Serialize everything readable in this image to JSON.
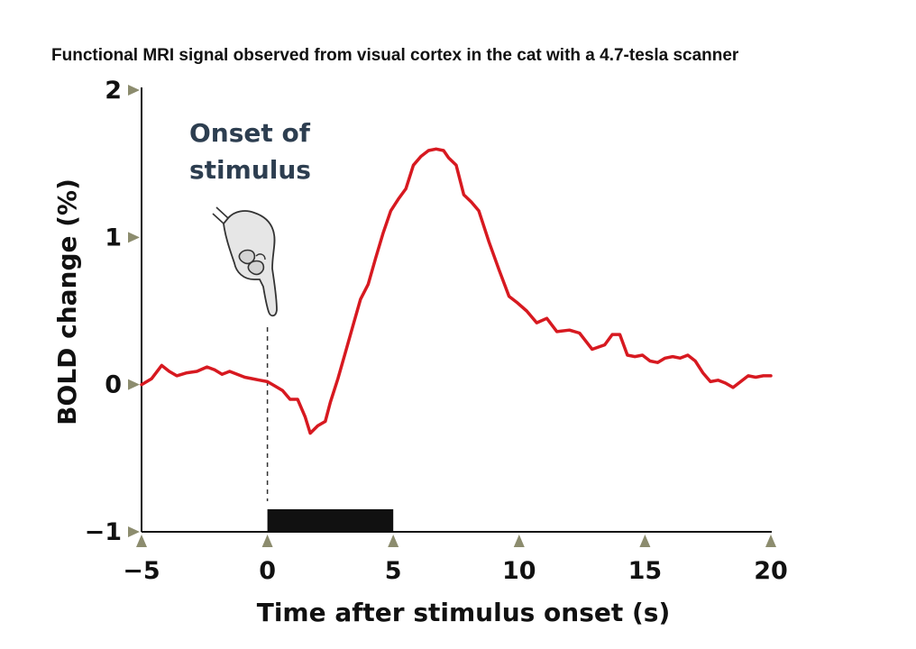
{
  "colors": {
    "series": "#d71920",
    "axis": "#111111",
    "tick_marker": "#8c8c6e",
    "annotation_text": "#2d3e50",
    "stimulus_bar": "#111111"
  },
  "chart_data": {
    "type": "line",
    "title": "Functional MRI signal observed from visual cortex in the cat with a 4.7-tesla scanner",
    "xlabel": "Time after stimulus onset (s)",
    "ylabel": "BOLD change (%)",
    "xlim": [
      -5,
      20
    ],
    "ylim": [
      -1,
      2
    ],
    "x_ticks": [
      -5,
      0,
      5,
      10,
      15,
      20
    ],
    "x_tick_labels": [
      "−5",
      "0",
      "5",
      "10",
      "15",
      "20"
    ],
    "y_ticks": [
      -1,
      0,
      1,
      2
    ],
    "y_tick_labels": [
      "−1",
      "0",
      "1",
      "2"
    ],
    "grid": false,
    "legend": "none",
    "series": [
      {
        "x": [
          -5,
          -4.6,
          -4.2,
          -3.9,
          -3.6,
          -3.2,
          -2.8,
          -2.4,
          -2.1,
          -1.8,
          -1.5,
          -1.2,
          -0.9,
          -0.6,
          -0.3,
          0,
          0.3,
          0.6,
          0.9,
          1.2,
          1.5,
          1.7,
          2.0,
          2.3,
          2.5,
          2.8,
          3.1,
          3.4,
          3.7,
          4.0,
          4.3,
          4.6,
          4.9,
          5.2,
          5.5,
          5.8,
          6.1,
          6.4,
          6.7,
          7.0,
          7.2,
          7.5,
          7.8,
          8.1,
          8.4,
          8.8,
          9.2,
          9.6,
          9.9,
          10.3,
          10.7,
          11.1,
          11.5,
          12.0,
          12.4,
          12.9,
          13.4,
          13.7,
          14.0,
          14.3,
          14.6,
          14.9,
          15.2,
          15.5,
          15.8,
          16.1,
          16.4,
          16.7,
          17.0,
          17.3,
          17.6,
          17.9,
          18.2,
          18.5,
          18.8,
          19.1,
          19.4,
          19.7,
          20.0
        ],
        "values": [
          0.0,
          0.04,
          0.13,
          0.09,
          0.06,
          0.08,
          0.09,
          0.12,
          0.1,
          0.07,
          0.09,
          0.07,
          0.05,
          0.04,
          0.03,
          0.02,
          -0.01,
          -0.04,
          -0.1,
          -0.1,
          -0.22,
          -0.33,
          -0.28,
          -0.25,
          -0.12,
          0.04,
          0.22,
          0.4,
          0.58,
          0.68,
          0.86,
          1.03,
          1.18,
          1.26,
          1.33,
          1.49,
          1.55,
          1.59,
          1.6,
          1.59,
          1.54,
          1.49,
          1.29,
          1.24,
          1.18,
          0.97,
          0.78,
          0.6,
          0.56,
          0.5,
          0.42,
          0.45,
          0.36,
          0.37,
          0.35,
          0.24,
          0.27,
          0.34,
          0.34,
          0.2,
          0.19,
          0.2,
          0.16,
          0.15,
          0.18,
          0.19,
          0.18,
          0.2,
          0.16,
          0.08,
          0.02,
          0.03,
          0.01,
          -0.02,
          0.02,
          0.06,
          0.05,
          0.06,
          0.06
        ]
      }
    ],
    "annotations": {
      "onset_text_line1": "Onset of",
      "onset_text_line2": "stimulus",
      "onset_x": 0,
      "stimulus_bar": {
        "x_start": 0,
        "x_end": 5,
        "y": -0.92
      }
    }
  }
}
